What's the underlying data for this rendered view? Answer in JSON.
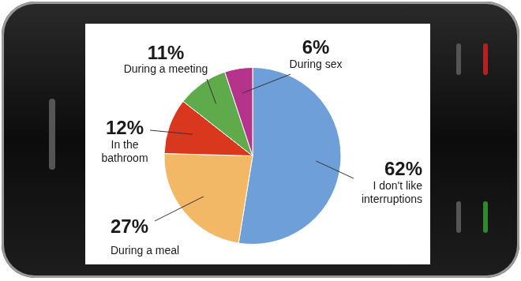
{
  "chart_data": {
    "type": "pie",
    "categories": [
      "I don't like interruptions",
      "During a meal",
      "In the bathroom",
      "During a meeting",
      "During sex"
    ],
    "values": [
      62,
      27,
      12,
      11,
      6
    ],
    "value_labels": [
      "62%",
      "27%",
      "12%",
      "11%",
      "6%"
    ],
    "colors": [
      "#6f9fd8",
      "#f2b866",
      "#d9381e",
      "#5faa4a",
      "#b5338a"
    ],
    "data_labels": true
  }
}
